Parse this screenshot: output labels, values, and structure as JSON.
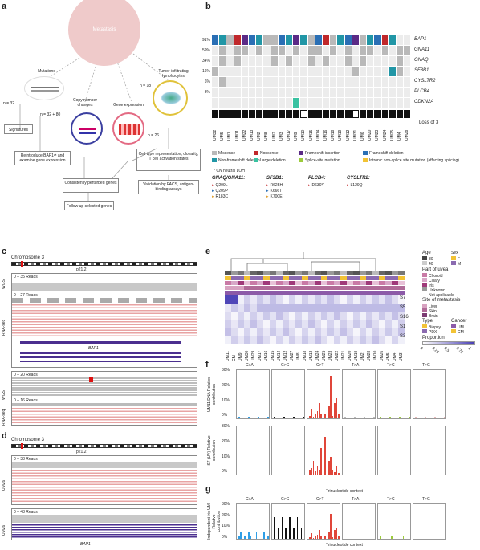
{
  "panels": {
    "a": "a",
    "b": "b",
    "c": "c",
    "d": "d",
    "e": "e",
    "f": "f",
    "g": "g"
  },
  "panel_a": {
    "center": "Metastasis",
    "mutations": {
      "title": "Mutations",
      "n": "n = 32",
      "n2": "n = 32 + 80"
    },
    "copy_number": "Copy number changes",
    "gene_expr": {
      "title": "Gene expression",
      "n": "n = 26"
    },
    "til": {
      "title": "Tumor-infiltrating lymphocytes",
      "n": "n = 18"
    },
    "signatures": "Signatures",
    "reintroduce": "Reintroduce BAP1ʷᵗ and examine gene expression",
    "consistent": "Consistently perturbed genes",
    "followup": "Follow up selected genes",
    "celltype": "Cell type representation, clonality, T cell activation states",
    "validation": "Validation by FACS, antigen-binding assays"
  },
  "panel_b": {
    "genes": [
      {
        "pct": "91%",
        "name": "BAP1"
      },
      {
        "pct": "59%",
        "name": "GNA11"
      },
      {
        "pct": "34%",
        "name": "GNAQ"
      },
      {
        "pct": "16%",
        "name": "SF3B1"
      },
      {
        "pct": "6%",
        "name": "CYSLTR2"
      },
      {
        "pct": "3%",
        "name": "PLCB4"
      },
      {
        "pct": "",
        "name": "CDKN2A"
      }
    ],
    "loss_label": "Loss of 3",
    "samples": [
      "UM32",
      "UM5",
      "UM1",
      "UM11",
      "UM22",
      "UM13",
      "UM2",
      "UM8",
      "UM7",
      "UM3",
      "UM17",
      "UM9",
      "UM10",
      "UM15",
      "UM14",
      "UM16",
      "UM18",
      "UM19",
      "UM12",
      "UM31",
      "UM6",
      "UM20",
      "UM23",
      "UM24",
      "UM25",
      "UM4",
      "UM28"
    ],
    "legend": [
      {
        "label": "Missense",
        "color": "#b9b9b9"
      },
      {
        "label": "Nonsense",
        "color": "#c0282b"
      },
      {
        "label": "Frameshift insertion",
        "color": "#5b2a86"
      },
      {
        "label": "Frameshift deletion",
        "color": "#2a6fb5"
      },
      {
        "label": "Non-frameshift deletion",
        "color": "#2196a6"
      },
      {
        "label": "Large deletion",
        "color": "#39c2a1"
      },
      {
        "label": "Splice-site mutation",
        "color": "#9ccb3b"
      },
      {
        "label": "Intronic non-splice site mutation (affecting splicing)",
        "color": "#f2c335"
      }
    ],
    "cn_loh": "* CN neutral LOH",
    "hotspots": [
      {
        "gene": "GNAQ/GNA11:",
        "items": [
          "Q209L",
          "Q209P",
          "R183C"
        ]
      },
      {
        "gene": "SF3B1:",
        "items": [
          "R625H",
          "K666T",
          "K700E"
        ]
      },
      {
        "gene": "PLCB4:",
        "items": [
          "D630Y"
        ]
      },
      {
        "gene": "CYSLTR2:",
        "items": [
          "L129Q"
        ]
      }
    ]
  },
  "panel_c": {
    "chrom": "Chromosome 3",
    "band": "p21.2",
    "wgs_top": "WGS",
    "rna_top": "RNA-seq",
    "reads1": "0 – 35 Reads",
    "reads2": "0 – 27 Reads",
    "gene": "BAP1",
    "reads3": "0 – 20 Reads",
    "reads4": "0 – 16 Reads",
    "wgs_bot": "WGS",
    "rna_bot": "RNA-seq"
  },
  "panel_d": {
    "chrom": "Chromosome 3",
    "band": "p21.2",
    "reads1": "0 – 38 Reads",
    "reads2": "0 – 48 Reads",
    "side1": "UM26",
    "side2": "UM26",
    "gene": "BAP1"
  },
  "panel_e": {
    "row_labels": [
      "S7",
      "S5",
      "S16",
      "S1",
      "S3"
    ],
    "samples": [
      "UM11",
      "CM",
      "UM9",
      "UM30",
      "UM29",
      "UM17",
      "UM16",
      "UM15",
      "UM14",
      "UM12",
      "UM27",
      "UM8",
      "UM18",
      "UM13",
      "UM24",
      "UM25",
      "UM23",
      "UM22",
      "UM21",
      "UM20",
      "UM19",
      "UM2",
      "UM28",
      "UM10",
      "UM26",
      "UM5",
      "UM4",
      "UM3"
    ],
    "legend": {
      "age": "Age",
      "age_hi": "80",
      "age_lo": "40",
      "sex": "Sex",
      "sex_f": "F",
      "sex_m": "M",
      "part": "Part of uvea",
      "part_items": [
        "Choroid",
        "Ciliary",
        "Iris",
        "Unknown",
        "Not applicable"
      ],
      "site": "Site of metastasis",
      "site_items": [
        "Liver",
        "Skin",
        "Brain"
      ],
      "type": "Type",
      "type_items": [
        "Biopsy",
        "PDX"
      ],
      "cancer": "Cancer",
      "cancer_items": [
        "UM",
        "CM"
      ],
      "prop": "Proportion",
      "prop_ticks": [
        "0",
        "0.25",
        "0.5",
        "0.75",
        "1"
      ]
    }
  },
  "panel_f": {
    "subs": [
      "C>A",
      "C>G",
      "C>T",
      "T>A",
      "T>C",
      "T>G"
    ],
    "ylabel1": "UM11 DNA Relative contribution",
    "ylabel2": "S7 (UV) Relative contribution",
    "yticks": [
      "30%",
      "20%",
      "10%",
      "0%"
    ],
    "xlabel": "Trinucleotide context"
  },
  "panel_g": {
    "subs": [
      "C>A",
      "C>G",
      "C>T",
      "T>A",
      "T>C",
      "T>G"
    ],
    "ylabel": "Independent iris UM Relative contribution",
    "yticks": [
      "30%",
      "20%",
      "10%",
      "0%"
    ],
    "xlabel": "Trinucleotide context"
  },
  "colors": {
    "pink": "#e8a3a3",
    "purple": "#4b2f8f",
    "grey": "#b5b5b5",
    "dark": "#111111"
  }
}
